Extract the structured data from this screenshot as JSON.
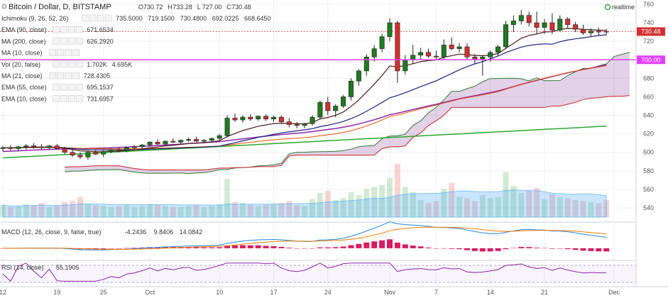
{
  "header": {
    "title": "Bitcoin / Dollar, D, BITSTAMP",
    "ohlc": [
      {
        "k": "O",
        "v": "730.72"
      },
      {
        "k": "H",
        "v": "733.28"
      },
      {
        "k": "L",
        "v": "727.00"
      },
      {
        "k": "C",
        "v": "730.48"
      }
    ],
    "realtime": "realtime"
  },
  "legend": [
    {
      "name": "Ichimoku (9, 26, 52, 26)",
      "values": [
        "735.5000",
        "719.1500",
        "730.4800",
        "692.0225",
        "668.6450"
      ],
      "colors": [
        "#1565c0",
        "#6a1a1a",
        "#2e7d32",
        "#2e7d32",
        "#c62828"
      ]
    },
    {
      "name": "EMA (90, close)",
      "values": [
        "671.6534"
      ],
      "colors": [
        "#8e24aa"
      ]
    },
    {
      "name": "MA (200, close)",
      "values": [
        "626.2920"
      ],
      "colors": [
        "#2ea82e"
      ]
    },
    {
      "name": "MA (10, close)",
      "values": [],
      "colors": [],
      "muted": true
    },
    {
      "name": "Vol (20, false)",
      "values": [
        "1.702K",
        "4.695K"
      ],
      "colors": [
        "#c62828",
        "#1e88e5"
      ]
    },
    {
      "name": "MA (21, close)",
      "values": [
        "728.4305"
      ],
      "colors": [
        "#1a237e"
      ]
    },
    {
      "name": "EMA (55, close)",
      "values": [
        "695.1537"
      ],
      "colors": [
        "#e65100"
      ]
    },
    {
      "name": "EMA (10, close)",
      "values": [
        "731.6957"
      ],
      "colors": [
        "#4e1a1a"
      ]
    }
  ],
  "badges": {
    "last_price": "730.48",
    "hline_price": "700.00"
  },
  "indicators": {
    "macd": {
      "name": "MACD (12, 26, close, 9, false, true)",
      "values": [
        "-4.2436",
        "9.8406",
        "14.0842"
      ],
      "colors": [
        "#c2185b",
        "#1e88e5",
        "#f57c00"
      ],
      "ticks": [
        "20.0000",
        "0.0000"
      ]
    },
    "rsi": {
      "name": "RSI (14, close)",
      "values": [
        "55.1905"
      ],
      "colors": [
        "#8e24aa"
      ],
      "ticks": [
        "70.0000",
        "40.0000"
      ]
    }
  },
  "chart_data": {
    "type": "candlestick",
    "title": "Bitcoin / Dollar, D, BITSTAMP",
    "ylim": [
      530,
      760
    ],
    "y_ticks": [
      540,
      560,
      580,
      600,
      620,
      640,
      660,
      680,
      700,
      720,
      740,
      760
    ],
    "x_ticks": [
      {
        "i": 0,
        "label": "12"
      },
      {
        "i": 7,
        "label": "19"
      },
      {
        "i": 13,
        "label": "25"
      },
      {
        "i": 19,
        "label": "Oct"
      },
      {
        "i": 28,
        "label": "10"
      },
      {
        "i": 35,
        "label": "17"
      },
      {
        "i": 42,
        "label": "24"
      },
      {
        "i": 50,
        "label": "Nov"
      },
      {
        "i": 56,
        "label": "7"
      },
      {
        "i": 63,
        "label": "14"
      },
      {
        "i": 70,
        "label": "21"
      },
      {
        "i": 79,
        "label": "Dec"
      }
    ],
    "candles": [
      {
        "o": 604,
        "h": 607,
        "l": 601,
        "c": 605,
        "v": 1.2
      },
      {
        "o": 605,
        "h": 608,
        "l": 602,
        "c": 604,
        "v": 1.0
      },
      {
        "o": 604,
        "h": 607,
        "l": 601,
        "c": 606,
        "v": 1.1
      },
      {
        "o": 606,
        "h": 609,
        "l": 603,
        "c": 607,
        "v": 1.3
      },
      {
        "o": 607,
        "h": 610,
        "l": 604,
        "c": 606,
        "v": 1.2
      },
      {
        "o": 606,
        "h": 609,
        "l": 603,
        "c": 605,
        "v": 1.4
      },
      {
        "o": 605,
        "h": 608,
        "l": 603,
        "c": 607,
        "v": 1.0
      },
      {
        "o": 607,
        "h": 609,
        "l": 603,
        "c": 604,
        "v": 1.1
      },
      {
        "o": 604,
        "h": 606,
        "l": 598,
        "c": 600,
        "v": 1.5
      },
      {
        "o": 600,
        "h": 603,
        "l": 595,
        "c": 597,
        "v": 1.6
      },
      {
        "o": 597,
        "h": 600,
        "l": 593,
        "c": 595,
        "v": 2.0
      },
      {
        "o": 595,
        "h": 601,
        "l": 592,
        "c": 600,
        "v": 1.3
      },
      {
        "o": 600,
        "h": 603,
        "l": 597,
        "c": 598,
        "v": 1.2
      },
      {
        "o": 598,
        "h": 602,
        "l": 595,
        "c": 601,
        "v": 1.1
      },
      {
        "o": 601,
        "h": 604,
        "l": 599,
        "c": 603,
        "v": 1.0
      },
      {
        "o": 603,
        "h": 605,
        "l": 600,
        "c": 602,
        "v": 1.1
      },
      {
        "o": 602,
        "h": 606,
        "l": 600,
        "c": 605,
        "v": 1.2
      },
      {
        "o": 605,
        "h": 608,
        "l": 603,
        "c": 606,
        "v": 1.0
      },
      {
        "o": 606,
        "h": 609,
        "l": 604,
        "c": 608,
        "v": 1.1
      },
      {
        "o": 608,
        "h": 612,
        "l": 606,
        "c": 611,
        "v": 1.3
      },
      {
        "o": 611,
        "h": 614,
        "l": 608,
        "c": 609,
        "v": 1.2
      },
      {
        "o": 609,
        "h": 613,
        "l": 607,
        "c": 612,
        "v": 1.1
      },
      {
        "o": 612,
        "h": 615,
        "l": 610,
        "c": 611,
        "v": 1.0
      },
      {
        "o": 611,
        "h": 614,
        "l": 609,
        "c": 613,
        "v": 1.0
      },
      {
        "o": 613,
        "h": 616,
        "l": 611,
        "c": 614,
        "v": 1.1
      },
      {
        "o": 614,
        "h": 617,
        "l": 611,
        "c": 612,
        "v": 1.2
      },
      {
        "o": 612,
        "h": 614,
        "l": 610,
        "c": 613,
        "v": 1.0
      },
      {
        "o": 613,
        "h": 616,
        "l": 611,
        "c": 615,
        "v": 1.1
      },
      {
        "o": 615,
        "h": 620,
        "l": 613,
        "c": 618,
        "v": 1.3
      },
      {
        "o": 618,
        "h": 640,
        "l": 616,
        "c": 637,
        "v": 3.8
      },
      {
        "o": 637,
        "h": 642,
        "l": 633,
        "c": 635,
        "v": 1.5
      },
      {
        "o": 635,
        "h": 640,
        "l": 632,
        "c": 638,
        "v": 1.4
      },
      {
        "o": 638,
        "h": 641,
        "l": 634,
        "c": 636,
        "v": 1.2
      },
      {
        "o": 636,
        "h": 640,
        "l": 634,
        "c": 639,
        "v": 1.1
      },
      {
        "o": 639,
        "h": 641,
        "l": 634,
        "c": 636,
        "v": 1.2
      },
      {
        "o": 636,
        "h": 640,
        "l": 633,
        "c": 638,
        "v": 1.3
      },
      {
        "o": 638,
        "h": 640,
        "l": 631,
        "c": 633,
        "v": 1.4
      },
      {
        "o": 633,
        "h": 637,
        "l": 627,
        "c": 630,
        "v": 1.6
      },
      {
        "o": 630,
        "h": 633,
        "l": 626,
        "c": 629,
        "v": 1.2
      },
      {
        "o": 629,
        "h": 632,
        "l": 626,
        "c": 631,
        "v": 1.1
      },
      {
        "o": 631,
        "h": 640,
        "l": 629,
        "c": 638,
        "v": 1.8
      },
      {
        "o": 638,
        "h": 656,
        "l": 636,
        "c": 654,
        "v": 2.4
      },
      {
        "o": 654,
        "h": 660,
        "l": 640,
        "c": 645,
        "v": 2.6
      },
      {
        "o": 645,
        "h": 652,
        "l": 638,
        "c": 650,
        "v": 1.7
      },
      {
        "o": 650,
        "h": 662,
        "l": 648,
        "c": 660,
        "v": 1.9
      },
      {
        "o": 660,
        "h": 680,
        "l": 656,
        "c": 677,
        "v": 2.5
      },
      {
        "o": 677,
        "h": 690,
        "l": 672,
        "c": 688,
        "v": 2.2
      },
      {
        "o": 688,
        "h": 706,
        "l": 683,
        "c": 703,
        "v": 2.8
      },
      {
        "o": 703,
        "h": 716,
        "l": 698,
        "c": 712,
        "v": 3.0
      },
      {
        "o": 712,
        "h": 728,
        "l": 708,
        "c": 725,
        "v": 3.2
      },
      {
        "o": 725,
        "h": 745,
        "l": 720,
        "c": 740,
        "v": 3.9
      },
      {
        "o": 740,
        "h": 742,
        "l": 675,
        "c": 688,
        "v": 5.3
      },
      {
        "o": 688,
        "h": 705,
        "l": 684,
        "c": 700,
        "v": 3.0
      },
      {
        "o": 700,
        "h": 716,
        "l": 696,
        "c": 705,
        "v": 2.5
      },
      {
        "o": 705,
        "h": 713,
        "l": 700,
        "c": 708,
        "v": 1.7
      },
      {
        "o": 708,
        "h": 712,
        "l": 702,
        "c": 704,
        "v": 1.4
      },
      {
        "o": 704,
        "h": 710,
        "l": 700,
        "c": 703,
        "v": 1.6
      },
      {
        "o": 703,
        "h": 722,
        "l": 700,
        "c": 716,
        "v": 2.8
      },
      {
        "o": 716,
        "h": 724,
        "l": 710,
        "c": 712,
        "v": 3.4
      },
      {
        "o": 712,
        "h": 718,
        "l": 708,
        "c": 714,
        "v": 2.0
      },
      {
        "o": 714,
        "h": 718,
        "l": 700,
        "c": 703,
        "v": 1.9
      },
      {
        "o": 703,
        "h": 706,
        "l": 696,
        "c": 701,
        "v": 1.6
      },
      {
        "o": 701,
        "h": 705,
        "l": 683,
        "c": 703,
        "v": 2.2
      },
      {
        "o": 703,
        "h": 710,
        "l": 698,
        "c": 708,
        "v": 1.9
      },
      {
        "o": 708,
        "h": 716,
        "l": 704,
        "c": 714,
        "v": 2.0
      },
      {
        "o": 714,
        "h": 742,
        "l": 712,
        "c": 738,
        "v": 4.5
      },
      {
        "o": 738,
        "h": 748,
        "l": 730,
        "c": 742,
        "v": 3.1
      },
      {
        "o": 742,
        "h": 754,
        "l": 738,
        "c": 748,
        "v": 2.4
      },
      {
        "o": 748,
        "h": 752,
        "l": 736,
        "c": 740,
        "v": 2.6
      },
      {
        "o": 740,
        "h": 752,
        "l": 728,
        "c": 735,
        "v": 2.9
      },
      {
        "o": 735,
        "h": 744,
        "l": 728,
        "c": 740,
        "v": 1.8
      },
      {
        "o": 740,
        "h": 750,
        "l": 728,
        "c": 732,
        "v": 2.3
      },
      {
        "o": 732,
        "h": 748,
        "l": 730,
        "c": 744,
        "v": 2.0
      },
      {
        "o": 744,
        "h": 746,
        "l": 734,
        "c": 738,
        "v": 1.9
      },
      {
        "o": 738,
        "h": 741,
        "l": 730,
        "c": 733,
        "v": 1.7
      },
      {
        "o": 733,
        "h": 738,
        "l": 727,
        "c": 729,
        "v": 1.6
      },
      {
        "o": 729,
        "h": 734,
        "l": 725,
        "c": 731,
        "v": 1.5
      },
      {
        "o": 731,
        "h": 735,
        "l": 726,
        "c": 730,
        "v": 1.4
      },
      {
        "o": 730.72,
        "h": 733.28,
        "l": 727.0,
        "c": 730.48,
        "v": 1.7
      }
    ],
    "hline": 700
  }
}
